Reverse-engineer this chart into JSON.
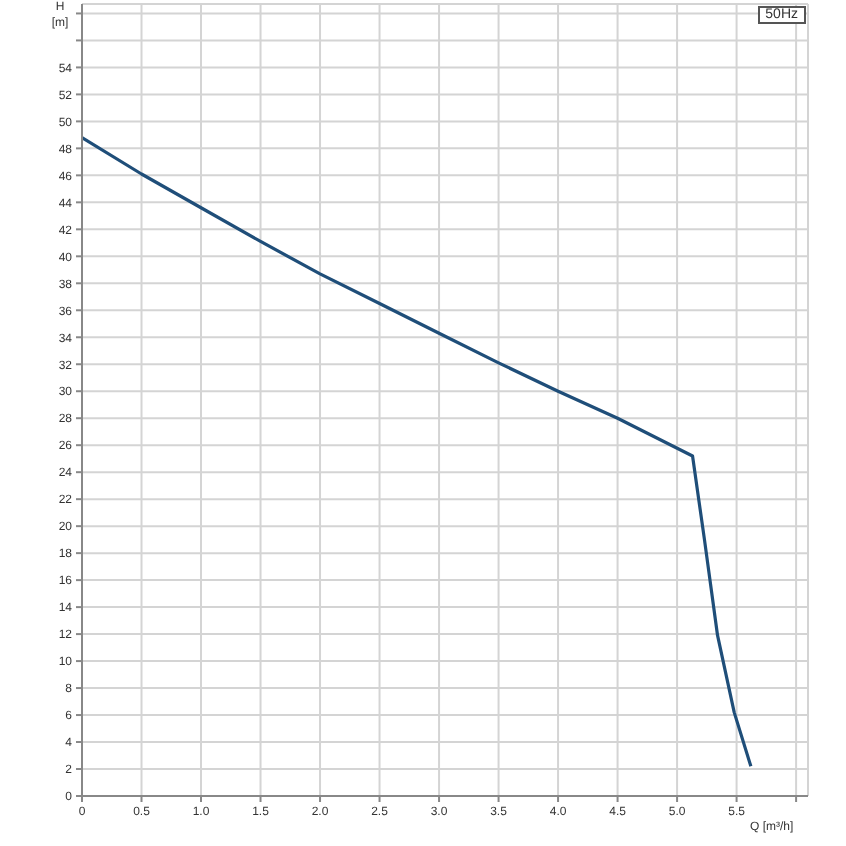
{
  "chart_data": {
    "type": "line",
    "xlabel": "Q [m³/h]",
    "ylabel": "H [m]",
    "annotations": [
      "50Hz"
    ],
    "series": [
      {
        "color": "#1f4e79",
        "x": [
          0,
          0.5,
          1.0,
          1.5,
          2.0,
          2.5,
          3.0,
          3.5,
          4.0,
          4.5,
          5.13,
          5.23,
          5.34,
          5.48,
          5.62
        ],
        "values": [
          48.8,
          46.1,
          43.6,
          41.1,
          38.7,
          36.5,
          34.3,
          32.1,
          30.0,
          28.0,
          25.2,
          19.0,
          11.9,
          6.2,
          2.2
        ]
      }
    ],
    "xlim": [
      0,
      6.1
    ],
    "xticks": [
      0,
      {
        "value": 0.5,
        "label": "0.5"
      },
      {
        "value": 1,
        "label": "1.0"
      },
      {
        "value": 1.5,
        "label": "1.5"
      },
      {
        "value": 2,
        "label": "2.0"
      },
      {
        "value": 2.5,
        "label": "2.5"
      },
      {
        "value": 3,
        "label": "3.0"
      },
      {
        "value": 3.5,
        "label": "3.5"
      },
      {
        "value": 4,
        "label": "4.0"
      },
      {
        "value": 4.5,
        "label": "4.5"
      },
      {
        "value": 5,
        "label": "5.0"
      },
      {
        "value": 5.5,
        "label": "5.5"
      },
      {
        "value": 6,
        "label": null
      }
    ],
    "ylim": [
      0,
      58.7
    ],
    "yticks": [
      0,
      2,
      4,
      6,
      8,
      10,
      12,
      14,
      16,
      18,
      20,
      22,
      24,
      26,
      28,
      30,
      32,
      34,
      36,
      38,
      40,
      42,
      44,
      46,
      48,
      50,
      52,
      54,
      {
        "value": 56,
        "label": null
      },
      {
        "value": 58,
        "label": null
      }
    ],
    "grid": true,
    "legend": false,
    "marker": "none",
    "line_style": "solid"
  }
}
